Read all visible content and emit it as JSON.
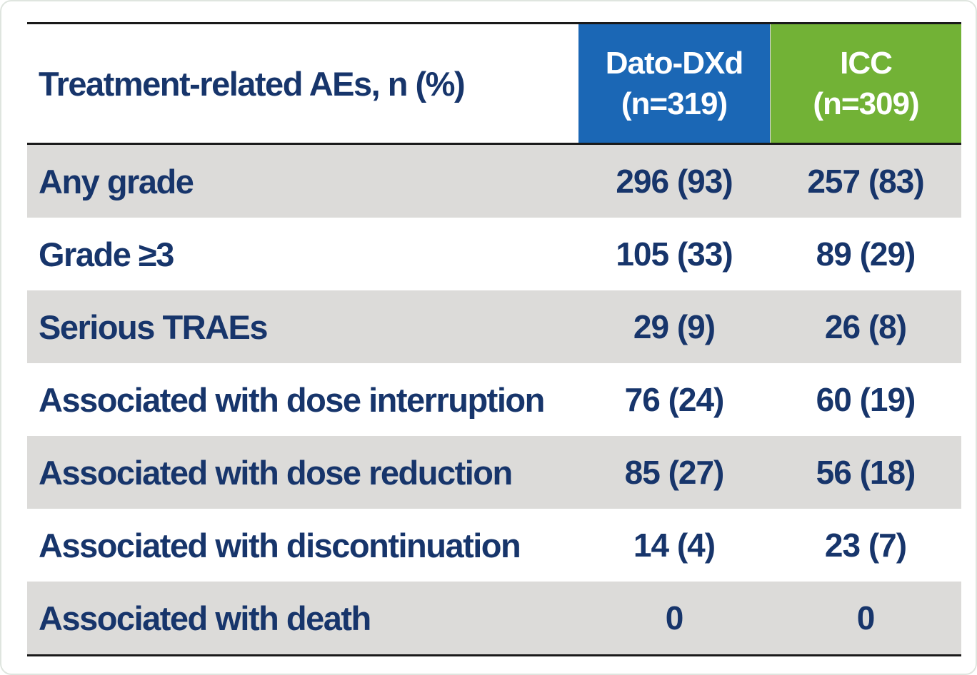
{
  "table": {
    "header": {
      "title": "Treatment-related AEs, n (%)",
      "columns": [
        {
          "name": "Dato-DXd",
          "n": "(n=319)",
          "color": "#1b67b5"
        },
        {
          "name": "ICC",
          "n": "(n=309)",
          "color": "#72b236"
        }
      ]
    },
    "rows": [
      {
        "label": "Any grade",
        "dato": "296 (93)",
        "icc": "257 (83)"
      },
      {
        "label": "Grade ≥3",
        "dato": "105 (33)",
        "icc": "89 (29)"
      },
      {
        "label": "Serious TRAEs",
        "dato": "29 (9)",
        "icc": "26 (8)"
      },
      {
        "label": "Associated with dose interruption",
        "dato": "76 (24)",
        "icc": "60 (19)"
      },
      {
        "label": "Associated with dose reduction",
        "dato": "85 (27)",
        "icc": "56 (18)"
      },
      {
        "label": "Associated with discontinuation",
        "dato": "14 (4)",
        "icc": "23 (7)"
      },
      {
        "label": "Associated with death",
        "dato": "0",
        "icc": "0"
      }
    ],
    "colors": {
      "text_navy": "#17356b",
      "header_blue": "#1b67b5",
      "header_green": "#72b236",
      "row_gray": "#dcdbd9",
      "border_black": "#1a1a1a"
    }
  },
  "chart_data": {
    "type": "table",
    "title": "Treatment-related AEs, n (%)",
    "columns": [
      "Treatment-related AEs, n (%)",
      "Dato-DXd (n=319)",
      "ICC (n=309)"
    ],
    "rows": [
      [
        "Any grade",
        "296 (93)",
        "257 (83)"
      ],
      [
        "Grade ≥3",
        "105 (33)",
        "89 (29)"
      ],
      [
        "Serious TRAEs",
        "29 (9)",
        "26 (8)"
      ],
      [
        "Associated with dose interruption",
        "76 (24)",
        "60 (19)"
      ],
      [
        "Associated with dose reduction",
        "85 (27)",
        "56 (18)"
      ],
      [
        "Associated with discontinuation",
        "14 (4)",
        "23 (7)"
      ],
      [
        "Associated with death",
        "0",
        "0"
      ]
    ],
    "layout_hints": {
      "striped_rows": true,
      "stripe_color": "#dcdbd9",
      "column_header_colors": [
        "#1b67b5",
        "#72b236"
      ],
      "text_color": "#17356b"
    }
  }
}
